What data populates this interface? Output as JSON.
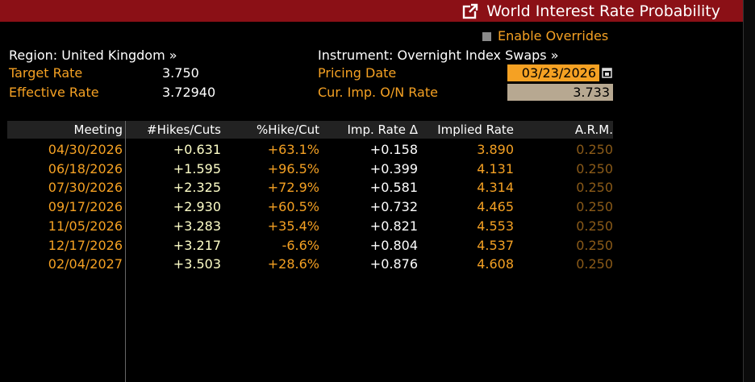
{
  "window": {
    "title": "World Interest Rate Probability",
    "title_bg": "#8b1016"
  },
  "header": {
    "enable_overrides": "Enable Overrides",
    "region": "Region: United Kingdom »",
    "instrument": "Instrument: Overnight Index Swaps »",
    "target_rate_label": "Target Rate",
    "target_rate_value": "3.750",
    "effective_rate_label": "Effective Rate",
    "effective_rate_value": "3.72940",
    "pricing_date_label": "Pricing Date",
    "pricing_date_value": "03/23/2026",
    "cur_imp_label": "Cur. Imp. O/N Rate",
    "cur_imp_value": "3.733"
  },
  "table": {
    "columns": [
      "Meeting",
      "#Hikes/Cuts",
      "%Hike/Cut",
      "Imp. Rate Δ",
      "Implied Rate",
      "A.R.M."
    ],
    "rows": [
      [
        "04/30/2026",
        "+0.631",
        "+63.1%",
        "+0.158",
        "3.890",
        "0.250"
      ],
      [
        "06/18/2026",
        "+1.595",
        "+96.5%",
        "+0.399",
        "4.131",
        "0.250"
      ],
      [
        "07/30/2026",
        "+2.325",
        "+72.9%",
        "+0.581",
        "4.314",
        "0.250"
      ],
      [
        "09/17/2026",
        "+2.930",
        "+60.5%",
        "+0.732",
        "4.465",
        "0.250"
      ],
      [
        "11/05/2026",
        "+3.283",
        "+35.4%",
        "+0.821",
        "4.553",
        "0.250"
      ],
      [
        "12/17/2026",
        "+3.217",
        "-6.6%",
        "+0.804",
        "4.537",
        "0.250"
      ],
      [
        "02/04/2027",
        "+3.503",
        "+28.6%",
        "+0.876",
        "4.608",
        "0.250"
      ]
    ]
  },
  "icons": {
    "title": "external-link-icon",
    "date": "calendar-icon",
    "checkbox": "checkbox-icon"
  },
  "colors": {
    "accent": "#f5a123",
    "hikes": "#ffffc8",
    "arm": "#8a5a18",
    "rate_box": "#b7a891"
  }
}
